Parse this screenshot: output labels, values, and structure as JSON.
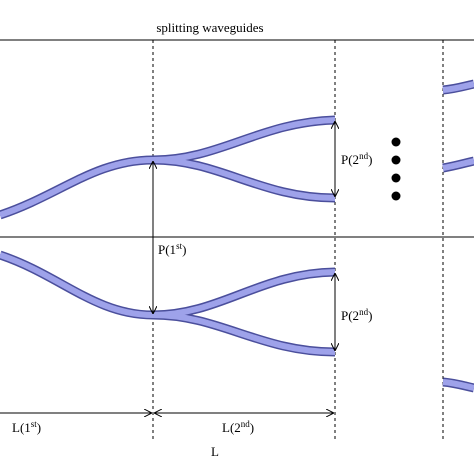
{
  "header": {
    "title": "splitting waveguides"
  },
  "labels": {
    "p_first": {
      "text": "P(1",
      "sup": "st",
      "close": ")"
    },
    "p_second_top": {
      "text": "P(2",
      "sup": "nd",
      "close": ")"
    },
    "p_second_bottom": {
      "text": "P(2",
      "sup": "nd",
      "close": ")"
    },
    "l_first": {
      "text": "L(1",
      "sup": "st",
      "close": ")"
    },
    "l_second": {
      "text": "L(2",
      "sup": "nd",
      "close": ")"
    },
    "l_total": {
      "text": "L"
    }
  }
}
